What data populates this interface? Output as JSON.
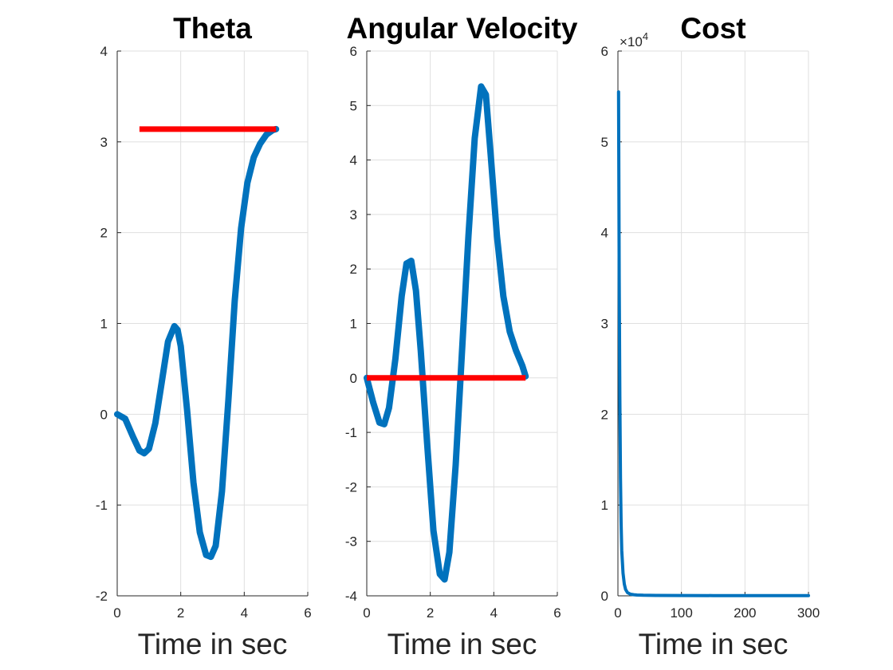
{
  "chart_data": [
    {
      "type": "line",
      "title": "Theta",
      "xlabel": "Time in sec",
      "ylabel": "",
      "xlim": [
        0,
        6
      ],
      "ylim": [
        -2,
        4
      ],
      "grid": true,
      "x_ticks": [
        0,
        2,
        4,
        6
      ],
      "y_ticks": [
        -2,
        -1,
        0,
        1,
        2,
        3,
        4
      ],
      "x_tick_labels": [
        "0",
        "2",
        "4",
        "6"
      ],
      "y_tick_labels": [
        "-2",
        "-1",
        "0",
        "1",
        "2",
        "3",
        "4"
      ],
      "series": [
        {
          "color": "#0072BD",
          "x": [
            0,
            0.25,
            0.5,
            0.7,
            0.85,
            1.0,
            1.2,
            1.4,
            1.6,
            1.8,
            1.9,
            2.0,
            2.2,
            2.4,
            2.6,
            2.8,
            2.95,
            3.1,
            3.3,
            3.5,
            3.7,
            3.9,
            4.1,
            4.3,
            4.5,
            4.7,
            4.9,
            5.0
          ],
          "y": [
            0,
            -0.05,
            -0.25,
            -0.4,
            -0.43,
            -0.38,
            -0.1,
            0.35,
            0.8,
            0.97,
            0.93,
            0.75,
            0.05,
            -0.75,
            -1.3,
            -1.55,
            -1.57,
            -1.45,
            -0.85,
            0.15,
            1.25,
            2.05,
            2.55,
            2.83,
            2.98,
            3.08,
            3.13,
            3.14
          ]
        },
        {
          "color": "#ff0000",
          "x": [
            0.7,
            5.0
          ],
          "y": [
            3.14,
            3.14
          ]
        }
      ]
    },
    {
      "type": "line",
      "title": "Angular Velocity",
      "xlabel": "Time in sec",
      "ylabel": "",
      "xlim": [
        0,
        6
      ],
      "ylim": [
        -4,
        6
      ],
      "grid": true,
      "x_ticks": [
        0,
        2,
        4,
        6
      ],
      "y_ticks": [
        -4,
        -3,
        -2,
        -1,
        0,
        1,
        2,
        3,
        4,
        5,
        6
      ],
      "x_tick_labels": [
        "0",
        "2",
        "4",
        "6"
      ],
      "y_tick_labels": [
        "-4",
        "-3",
        "-2",
        "-1",
        "0",
        "1",
        "2",
        "3",
        "4",
        "5",
        "6"
      ],
      "series": [
        {
          "color": "#0072BD",
          "x": [
            0,
            0.2,
            0.4,
            0.55,
            0.7,
            0.9,
            1.1,
            1.25,
            1.4,
            1.55,
            1.7,
            1.9,
            2.1,
            2.3,
            2.45,
            2.6,
            2.8,
            3.0,
            3.2,
            3.4,
            3.6,
            3.75,
            3.9,
            4.1,
            4.3,
            4.5,
            4.7,
            4.9,
            5.0
          ],
          "y": [
            0,
            -0.45,
            -0.82,
            -0.85,
            -0.55,
            0.35,
            1.5,
            2.1,
            2.15,
            1.6,
            0.5,
            -1.2,
            -2.8,
            -3.6,
            -3.7,
            -3.2,
            -1.6,
            0.5,
            2.6,
            4.4,
            5.35,
            5.2,
            4.1,
            2.6,
            1.5,
            0.85,
            0.5,
            0.22,
            0.03
          ]
        },
        {
          "color": "#ff0000",
          "x": [
            0,
            5.0
          ],
          "y": [
            0,
            0
          ]
        }
      ]
    },
    {
      "type": "line",
      "title": "Cost",
      "xlabel": "Time in sec",
      "ylabel": "",
      "xlim": [
        0,
        300
      ],
      "ylim": [
        0,
        60000
      ],
      "grid": true,
      "y_exponent_label": "×10",
      "y_exponent_power": "4",
      "x_ticks": [
        0,
        100,
        200,
        300
      ],
      "y_ticks": [
        0,
        10000,
        20000,
        30000,
        40000,
        50000,
        60000
      ],
      "x_tick_labels": [
        "0",
        "100",
        "200",
        "300"
      ],
      "y_tick_labels": [
        "0",
        "1",
        "2",
        "3",
        "4",
        "5",
        "6"
      ],
      "series": [
        {
          "color": "#0072BD",
          "x": [
            1,
            2,
            3,
            4,
            5,
            6,
            8,
            10,
            12,
            15,
            20,
            25,
            30,
            40,
            60,
            100,
            150,
            200,
            250,
            300
          ],
          "y": [
            55500,
            35000,
            22000,
            13000,
            8000,
            5000,
            2500,
            1300,
            700,
            350,
            180,
            120,
            90,
            60,
            45,
            35,
            30,
            28,
            25,
            25
          ]
        }
      ]
    }
  ]
}
